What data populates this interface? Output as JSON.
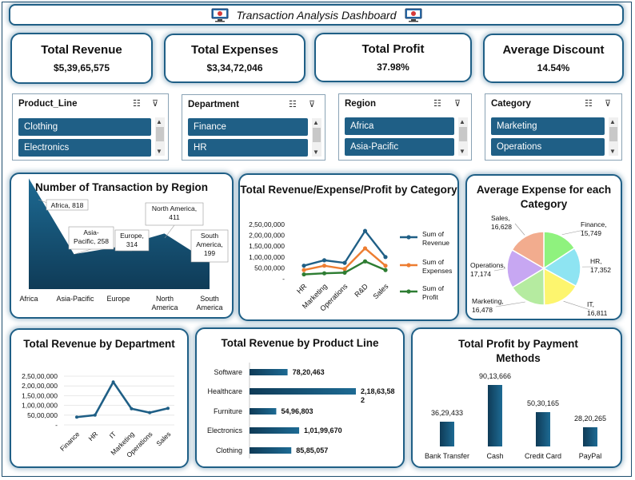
{
  "header": {
    "title": "Transaction Analysis Dashboard"
  },
  "kpis": [
    {
      "label": "Total Revenue",
      "value": "$5,39,65,575"
    },
    {
      "label": "Total Expenses",
      "value": "$3,34,72,046"
    },
    {
      "label": "Total Profit",
      "value": "37.98%"
    },
    {
      "label": "Average Discount",
      "value": "14.54%"
    }
  ],
  "slicers": [
    {
      "title": "Product_Line",
      "items": [
        "Clothing",
        "Electronics"
      ]
    },
    {
      "title": "Department",
      "items": [
        "Finance",
        "HR"
      ]
    },
    {
      "title": "Region",
      "items": [
        "Africa",
        "Asia-Pacific"
      ]
    },
    {
      "title": "Category",
      "items": [
        "Marketing",
        "Operations"
      ]
    }
  ],
  "colors": {
    "accent": "#1f5f86",
    "revenue": "#1f5f86",
    "expenses": "#ed7d31",
    "profit": "#2e7d32"
  },
  "charts": {
    "region": {
      "title": "Number of Transaction by Region"
    },
    "category": {
      "title": "Total Revenue/Expense/Profit by Category"
    },
    "avgexp": {
      "title": "Average Expense for each Category"
    },
    "dept": {
      "title": "Total Revenue by Department"
    },
    "product": {
      "title": "Total Revenue by Product Line"
    },
    "payment": {
      "title": "Total Profit by Payment Methods"
    }
  },
  "chart_data": [
    {
      "type": "area",
      "title": "Number of Transaction by Region",
      "categories": [
        "Africa",
        "Asia-Pacific",
        "Europe",
        "North America",
        "South America"
      ],
      "values": [
        818,
        258,
        314,
        411,
        199
      ],
      "data_labels": [
        "Africa, 818",
        "Asia-Pacific, 258",
        "Europe, 314",
        "North America, 411",
        "South America, 199"
      ],
      "ylim": [
        0,
        850
      ]
    },
    {
      "type": "line",
      "title": "Total Revenue/Expense/Profit by Category",
      "categories": [
        "HR",
        "Marketing",
        "Operations",
        "R&D",
        "Sales"
      ],
      "yticks": [
        "2,50,00,000",
        "2,00,00,000",
        "1,50,00,000",
        "1,00,00,000",
        "50,00,000",
        "-"
      ],
      "ylim": [
        0,
        25000000
      ],
      "series": [
        {
          "name": "Sum of Revenue",
          "values": [
            6000000,
            8500000,
            7300000,
            22000000,
            10000000
          ]
        },
        {
          "name": "Sum of Expenses",
          "values": [
            4000000,
            6000000,
            4500000,
            14000000,
            6000000
          ]
        },
        {
          "name": "Sum of Profit",
          "values": [
            2000000,
            2500000,
            2800000,
            8000000,
            4000000
          ]
        }
      ],
      "legend": "right"
    },
    {
      "type": "pie",
      "title": "Average Expense for each Category",
      "categories": [
        "Finance",
        "HR",
        "IT",
        "Marketing",
        "Operations",
        "Sales"
      ],
      "values": [
        15749,
        17352,
        16811,
        16478,
        17174,
        16628
      ],
      "labels": [
        "Finance, 15,749",
        "HR, 17,352",
        "IT, 16,811",
        "Marketing, 16,478",
        "Operations, 17,174",
        "Sales, 16,628"
      ],
      "colors": [
        "#8ff27e",
        "#8ee4f2",
        "#fdf56e",
        "#b5eba0",
        "#c7a7f2",
        "#f2ac8e"
      ]
    },
    {
      "type": "line",
      "title": "Total Revenue by Department",
      "categories": [
        "Finance",
        "HR",
        "IT",
        "Marketing",
        "Operations",
        "Sales"
      ],
      "values": [
        4000000,
        5000000,
        22000000,
        8300000,
        6300000,
        8500000
      ],
      "yticks": [
        "2,50,00,000",
        "2,00,00,000",
        "1,50,00,000",
        "1,00,00,000",
        "50,00,000",
        "-"
      ],
      "ylim": [
        0,
        25000000
      ]
    },
    {
      "type": "bar",
      "orientation": "horizontal",
      "title": "Total Revenue by Product Line",
      "categories": [
        "Software",
        "Healthcare",
        "Furniture",
        "Electronics",
        "Clothing"
      ],
      "values": [
        7820463,
        21863582,
        5496803,
        10199670,
        8585057
      ],
      "data_labels": [
        "78,20,463",
        "2,18,63,582",
        "54,96,803",
        "1,01,99,670",
        "85,85,057"
      ]
    },
    {
      "type": "bar",
      "title": "Total Profit by Payment Methods",
      "categories": [
        "Bank Transfer",
        "Cash",
        "Credit Card",
        "PayPal"
      ],
      "values": [
        3629433,
        9013666,
        5030165,
        2820265
      ],
      "data_labels": [
        "36,29,433",
        "90,13,666",
        "50,30,165",
        "28,20,265"
      ]
    }
  ]
}
